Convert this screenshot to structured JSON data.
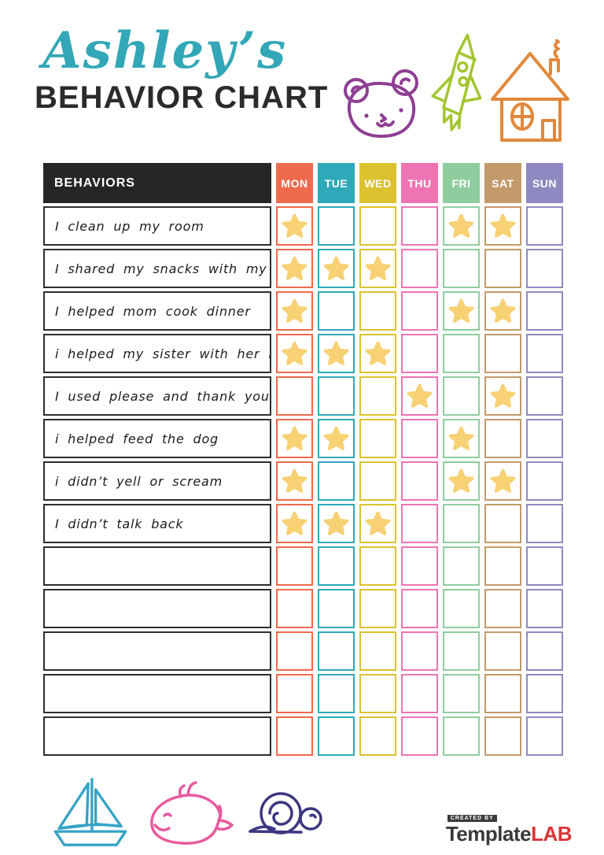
{
  "header": {
    "script_title": "Ashley’s",
    "main_title": "BEHAVIOR CHART"
  },
  "table": {
    "behaviors_label": "BEHAVIORS",
    "days": [
      {
        "label": "MON",
        "color": "#ed6a4c"
      },
      {
        "label": "TUE",
        "color": "#2ea9ba"
      },
      {
        "label": "WED",
        "color": "#dcc22e"
      },
      {
        "label": "THU",
        "color": "#ee74b4"
      },
      {
        "label": "FRI",
        "color": "#8fcd9e"
      },
      {
        "label": "SAT",
        "color": "#c39a6a"
      },
      {
        "label": "SUN",
        "color": "#8e89c0"
      }
    ],
    "star_color": "#f7d173",
    "rows": [
      {
        "label": "I clean up my room",
        "stars": [
          1,
          0,
          0,
          0,
          1,
          1,
          0
        ]
      },
      {
        "label": "I shared my snacks with my sister",
        "stars": [
          1,
          1,
          1,
          0,
          0,
          0,
          0
        ]
      },
      {
        "label": "I helped mom cook dinner",
        "stars": [
          1,
          0,
          0,
          0,
          1,
          1,
          0
        ]
      },
      {
        "label": "i helped my sister with her homework",
        "stars": [
          1,
          1,
          1,
          0,
          0,
          0,
          0
        ]
      },
      {
        "label": "I used please and thank you",
        "stars": [
          0,
          0,
          0,
          1,
          0,
          1,
          0
        ]
      },
      {
        "label": "i helped feed the dog",
        "stars": [
          1,
          1,
          0,
          0,
          1,
          0,
          0
        ]
      },
      {
        "label": "i didn’t yell or scream",
        "stars": [
          1,
          0,
          0,
          0,
          1,
          1,
          0
        ]
      },
      {
        "label": "I didn’t talk back",
        "stars": [
          1,
          1,
          1,
          0,
          0,
          0,
          0
        ]
      },
      {
        "label": "",
        "stars": [
          0,
          0,
          0,
          0,
          0,
          0,
          0
        ]
      },
      {
        "label": "",
        "stars": [
          0,
          0,
          0,
          0,
          0,
          0,
          0
        ]
      },
      {
        "label": "",
        "stars": [
          0,
          0,
          0,
          0,
          0,
          0,
          0
        ]
      },
      {
        "label": "",
        "stars": [
          0,
          0,
          0,
          0,
          0,
          0,
          0
        ]
      },
      {
        "label": "",
        "stars": [
          0,
          0,
          0,
          0,
          0,
          0,
          0
        ]
      }
    ]
  },
  "footer": {
    "logo": {
      "created_by": "CREATED BY",
      "brand_dark": "Template",
      "brand_accent": "LAB"
    }
  },
  "decoration_colors": {
    "bear": "#8e3f93",
    "rocket": "#a2c62f",
    "house": "#e2883b",
    "sailboat": "#35a3c6",
    "whale": "#e75b9e",
    "snail": "#3c3781"
  }
}
